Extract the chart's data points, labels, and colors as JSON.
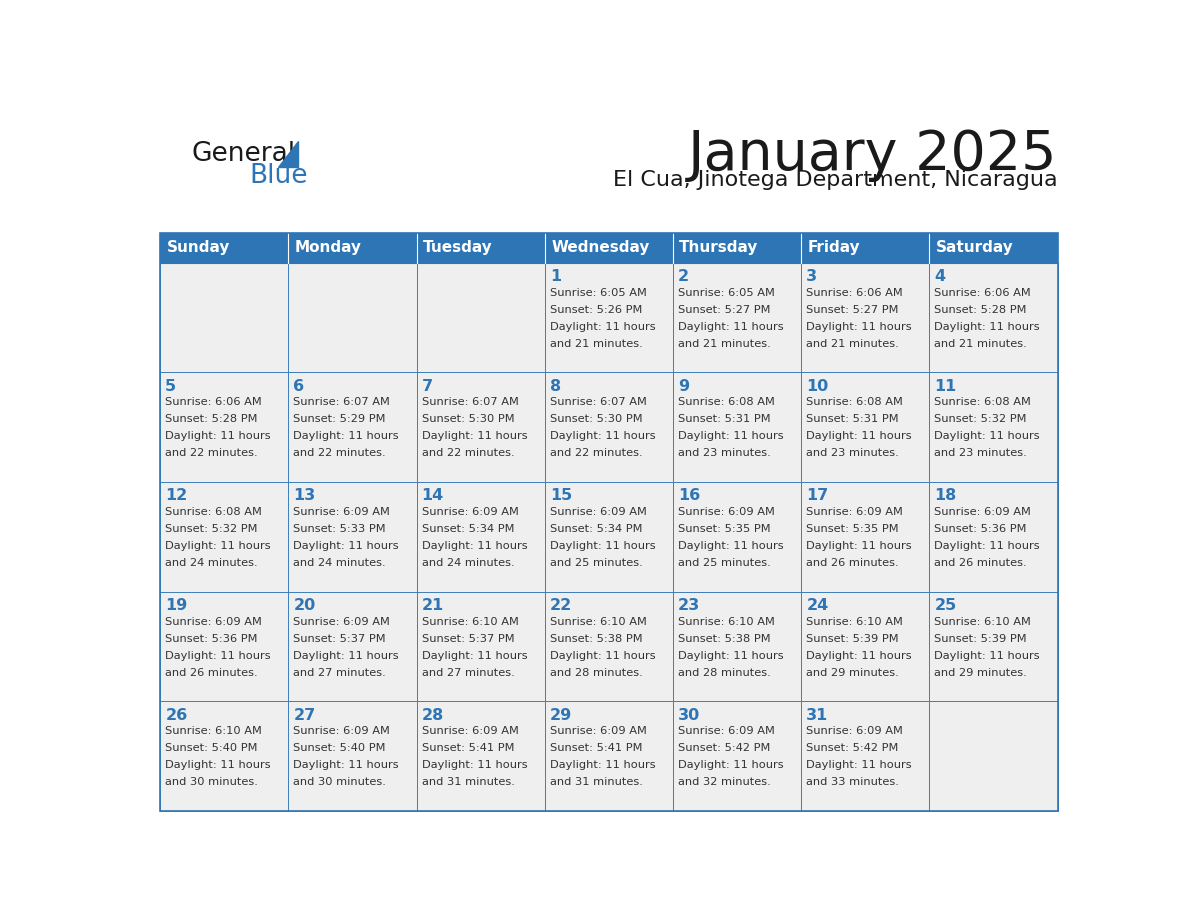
{
  "title": "January 2025",
  "subtitle": "El Cua, Jinotega Department, Nicaragua",
  "days_of_week": [
    "Sunday",
    "Monday",
    "Tuesday",
    "Wednesday",
    "Thursday",
    "Friday",
    "Saturday"
  ],
  "header_bg": "#2E75B6",
  "header_text_color": "#FFFFFF",
  "cell_bg_light": "#EFEFEF",
  "cell_border_color": "#2E75B6",
  "title_color": "#1A1A1A",
  "subtitle_color": "#1A1A1A",
  "day_num_color": "#2E75B6",
  "cell_text_color": "#333333",
  "logo_general_color": "#1A1A1A",
  "logo_blue_color": "#2E75B6",
  "weeks": [
    [
      {
        "day": null,
        "info": null
      },
      {
        "day": null,
        "info": null
      },
      {
        "day": null,
        "info": null
      },
      {
        "day": 1,
        "info": "Sunrise: 6:05 AM\nSunset: 5:26 PM\nDaylight: 11 hours\nand 21 minutes."
      },
      {
        "day": 2,
        "info": "Sunrise: 6:05 AM\nSunset: 5:27 PM\nDaylight: 11 hours\nand 21 minutes."
      },
      {
        "day": 3,
        "info": "Sunrise: 6:06 AM\nSunset: 5:27 PM\nDaylight: 11 hours\nand 21 minutes."
      },
      {
        "day": 4,
        "info": "Sunrise: 6:06 AM\nSunset: 5:28 PM\nDaylight: 11 hours\nand 21 minutes."
      }
    ],
    [
      {
        "day": 5,
        "info": "Sunrise: 6:06 AM\nSunset: 5:28 PM\nDaylight: 11 hours\nand 22 minutes."
      },
      {
        "day": 6,
        "info": "Sunrise: 6:07 AM\nSunset: 5:29 PM\nDaylight: 11 hours\nand 22 minutes."
      },
      {
        "day": 7,
        "info": "Sunrise: 6:07 AM\nSunset: 5:30 PM\nDaylight: 11 hours\nand 22 minutes."
      },
      {
        "day": 8,
        "info": "Sunrise: 6:07 AM\nSunset: 5:30 PM\nDaylight: 11 hours\nand 22 minutes."
      },
      {
        "day": 9,
        "info": "Sunrise: 6:08 AM\nSunset: 5:31 PM\nDaylight: 11 hours\nand 23 minutes."
      },
      {
        "day": 10,
        "info": "Sunrise: 6:08 AM\nSunset: 5:31 PM\nDaylight: 11 hours\nand 23 minutes."
      },
      {
        "day": 11,
        "info": "Sunrise: 6:08 AM\nSunset: 5:32 PM\nDaylight: 11 hours\nand 23 minutes."
      }
    ],
    [
      {
        "day": 12,
        "info": "Sunrise: 6:08 AM\nSunset: 5:32 PM\nDaylight: 11 hours\nand 24 minutes."
      },
      {
        "day": 13,
        "info": "Sunrise: 6:09 AM\nSunset: 5:33 PM\nDaylight: 11 hours\nand 24 minutes."
      },
      {
        "day": 14,
        "info": "Sunrise: 6:09 AM\nSunset: 5:34 PM\nDaylight: 11 hours\nand 24 minutes."
      },
      {
        "day": 15,
        "info": "Sunrise: 6:09 AM\nSunset: 5:34 PM\nDaylight: 11 hours\nand 25 minutes."
      },
      {
        "day": 16,
        "info": "Sunrise: 6:09 AM\nSunset: 5:35 PM\nDaylight: 11 hours\nand 25 minutes."
      },
      {
        "day": 17,
        "info": "Sunrise: 6:09 AM\nSunset: 5:35 PM\nDaylight: 11 hours\nand 26 minutes."
      },
      {
        "day": 18,
        "info": "Sunrise: 6:09 AM\nSunset: 5:36 PM\nDaylight: 11 hours\nand 26 minutes."
      }
    ],
    [
      {
        "day": 19,
        "info": "Sunrise: 6:09 AM\nSunset: 5:36 PM\nDaylight: 11 hours\nand 26 minutes."
      },
      {
        "day": 20,
        "info": "Sunrise: 6:09 AM\nSunset: 5:37 PM\nDaylight: 11 hours\nand 27 minutes."
      },
      {
        "day": 21,
        "info": "Sunrise: 6:10 AM\nSunset: 5:37 PM\nDaylight: 11 hours\nand 27 minutes."
      },
      {
        "day": 22,
        "info": "Sunrise: 6:10 AM\nSunset: 5:38 PM\nDaylight: 11 hours\nand 28 minutes."
      },
      {
        "day": 23,
        "info": "Sunrise: 6:10 AM\nSunset: 5:38 PM\nDaylight: 11 hours\nand 28 minutes."
      },
      {
        "day": 24,
        "info": "Sunrise: 6:10 AM\nSunset: 5:39 PM\nDaylight: 11 hours\nand 29 minutes."
      },
      {
        "day": 25,
        "info": "Sunrise: 6:10 AM\nSunset: 5:39 PM\nDaylight: 11 hours\nand 29 minutes."
      }
    ],
    [
      {
        "day": 26,
        "info": "Sunrise: 6:10 AM\nSunset: 5:40 PM\nDaylight: 11 hours\nand 30 minutes."
      },
      {
        "day": 27,
        "info": "Sunrise: 6:09 AM\nSunset: 5:40 PM\nDaylight: 11 hours\nand 30 minutes."
      },
      {
        "day": 28,
        "info": "Sunrise: 6:09 AM\nSunset: 5:41 PM\nDaylight: 11 hours\nand 31 minutes."
      },
      {
        "day": 29,
        "info": "Sunrise: 6:09 AM\nSunset: 5:41 PM\nDaylight: 11 hours\nand 31 minutes."
      },
      {
        "day": 30,
        "info": "Sunrise: 6:09 AM\nSunset: 5:42 PM\nDaylight: 11 hours\nand 32 minutes."
      },
      {
        "day": 31,
        "info": "Sunrise: 6:09 AM\nSunset: 5:42 PM\nDaylight: 11 hours\nand 33 minutes."
      },
      {
        "day": null,
        "info": null
      }
    ]
  ]
}
